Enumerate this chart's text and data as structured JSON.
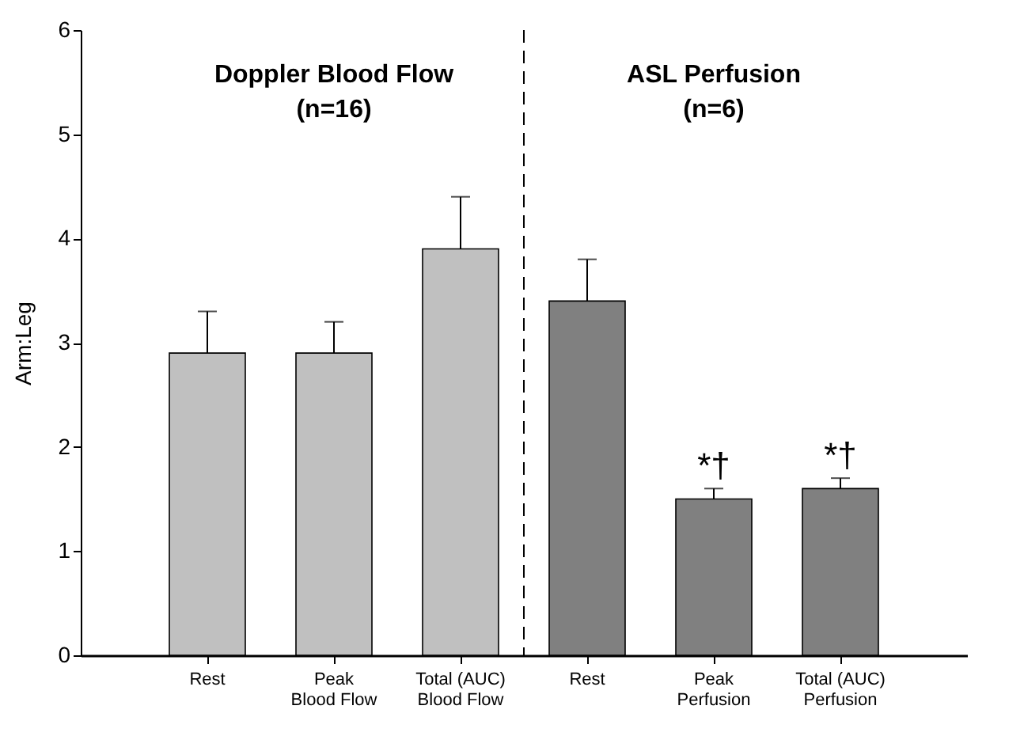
{
  "chart_data": {
    "type": "bar",
    "ylabel": "Arm:Leg",
    "categories": [
      "Rest",
      "Peak\nBlood Flow",
      "Total (AUC)\nBlood Flow",
      "Rest",
      "Peak\nPerfusion",
      "Total (AUC)\nPerfusion"
    ],
    "values": [
      2.9,
      2.9,
      3.9,
      3.4,
      1.5,
      1.6
    ],
    "colors": [
      "#c0c0c0",
      "#c0c0c0",
      "#c0c0c0",
      "#808080",
      "#808080",
      "#808080"
    ],
    "errors": [
      [
        2.9,
        3.3
      ],
      [
        2.9,
        3.2
      ],
      [
        3.9,
        4.4
      ],
      [
        3.4,
        3.8
      ],
      [
        1.5,
        1.6
      ],
      [
        1.6,
        1.7
      ]
    ],
    "ylim": [
      0,
      6
    ],
    "yticks": [
      0,
      1,
      2,
      3,
      4,
      5,
      6
    ],
    "grid": false,
    "annotations": [
      "Doppler Blood Flow",
      "(n=16)",
      "ASL Perfusion",
      "(n=6)",
      "*†",
      "*†"
    ]
  }
}
